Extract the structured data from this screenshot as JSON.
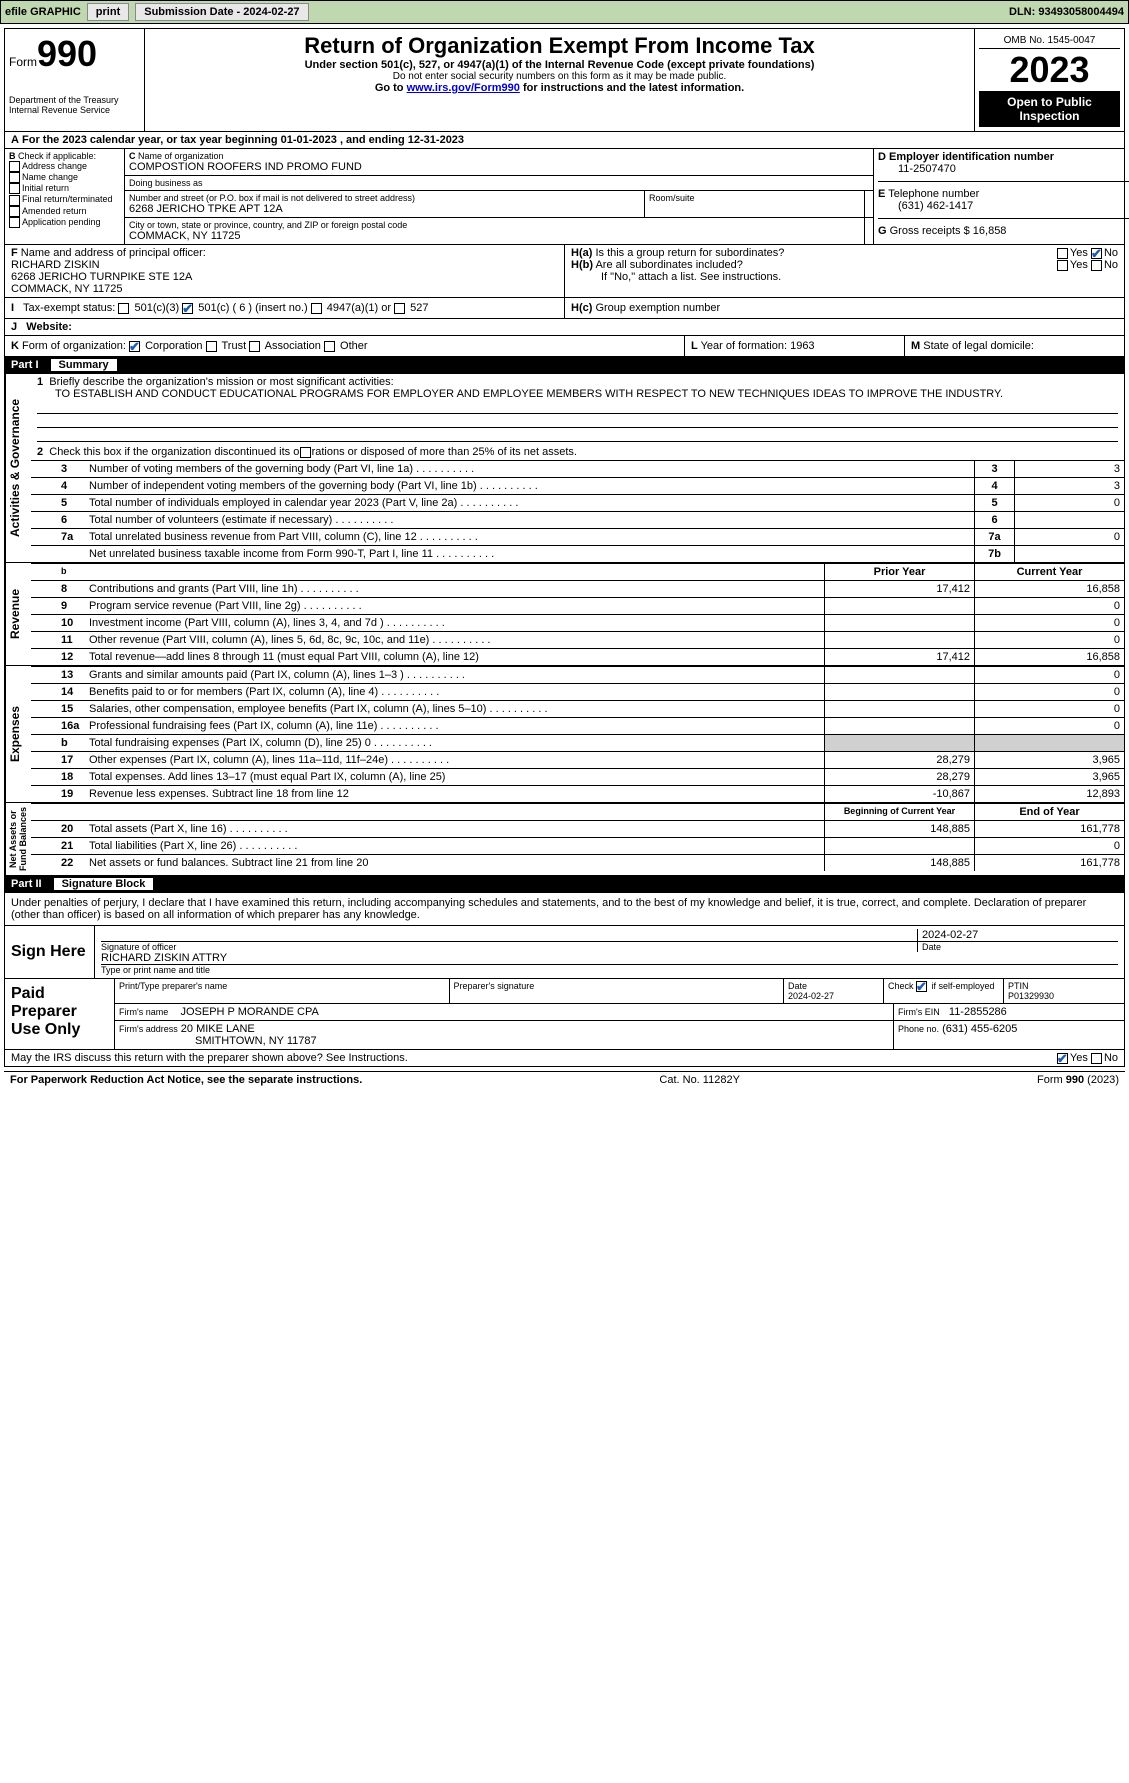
{
  "topbar": {
    "efile": "efile GRAPHIC",
    "print": "print",
    "subdate_label": "Submission Date - ",
    "subdate": "2024-02-27",
    "dln_label": "DLN: ",
    "dln": "93493058004494"
  },
  "header": {
    "form": "Form",
    "formnum": "990",
    "dept": "Department of the Treasury",
    "irs": "Internal Revenue Service",
    "title": "Return of Organization Exempt From Income Tax",
    "sub": "Under section 501(c), 527, or 4947(a)(1) of the Internal Revenue Code (except private foundations)",
    "note": "Do not enter social security numbers on this form as it may be made public.",
    "goto_pre": "Go to ",
    "goto_link": "www.irs.gov/Form990",
    "goto_post": " for instructions and the latest information.",
    "omb": "OMB No. 1545-0047",
    "year": "2023",
    "open": "Open to Public Inspection"
  },
  "lineA": "For the 2023 calendar year, or tax year beginning 01-01-2023    , and ending 12-31-2023",
  "boxB": {
    "label": "Check if applicable:",
    "items": [
      "Address change",
      "Name change",
      "Initial return",
      "Final return/terminated",
      "Amended return",
      "Application pending"
    ]
  },
  "boxC": {
    "name_label": "Name of organization",
    "name": "COMPOSTION ROOFERS IND PROMO FUND",
    "dba_label": "Doing business as",
    "dba": "",
    "street_label": "Number and street (or P.O. box if mail is not delivered to street address)",
    "room_label": "Room/suite",
    "street": "6268 JERICHO TPKE APT 12A",
    "city_label": "City or town, state or province, country, and ZIP or foreign postal code",
    "city": "COMMACK, NY  11725"
  },
  "boxD": {
    "label": "Employer identification number",
    "val": "11-2507470"
  },
  "boxE": {
    "label": "Telephone number",
    "val": "(631) 462-1417"
  },
  "boxG": {
    "label": "Gross receipts $",
    "val": "16,858"
  },
  "boxF": {
    "label": "Name and address of principal officer:",
    "name": "RICHARD ZISKIN",
    "addr1": "6268 JERICHO TURNPIKE STE 12A",
    "addr2": "COMMACK, NY  11725"
  },
  "boxH": {
    "a": "Is this a group return for subordinates?",
    "b": "Are all subordinates included?",
    "note": "If \"No,\" attach a list. See instructions.",
    "c": "Group exemption number"
  },
  "boxI": {
    "label": "Tax-exempt status:",
    "opts": [
      "501(c)(3)",
      "501(c) ( 6 ) (insert no.)",
      "4947(a)(1) or",
      "527"
    ]
  },
  "boxJ": {
    "label": "Website:",
    "val": ""
  },
  "boxK": {
    "label": "Form of organization:",
    "opts": [
      "Corporation",
      "Trust",
      "Association",
      "Other"
    ]
  },
  "boxL": {
    "label": "Year of formation:",
    "val": "1963"
  },
  "boxM": {
    "label": "State of legal domicile:",
    "val": ""
  },
  "part1": {
    "part": "Part I",
    "title": "Summary"
  },
  "mission_label": "Briefly describe the organization's mission or most significant activities:",
  "mission": "TO ESTABLISH AND CONDUCT EDUCATIONAL PROGRAMS FOR EMPLOYER AND EMPLOYEE MEMBERS WITH RESPECT TO NEW TECHNIQUES IDEAS TO IMPROVE THE INDUSTRY.",
  "line2": "Check this box      if the organization discontinued its operations or disposed of more than 25% of its net assets.",
  "gov_lines": [
    {
      "n": "3",
      "t": "Number of voting members of the governing body (Part VI, line 1a)",
      "bn": "3",
      "bv": "3"
    },
    {
      "n": "4",
      "t": "Number of independent voting members of the governing body (Part VI, line 1b)",
      "bn": "4",
      "bv": "3"
    },
    {
      "n": "5",
      "t": "Total number of individuals employed in calendar year 2023 (Part V, line 2a)",
      "bn": "5",
      "bv": "0"
    },
    {
      "n": "6",
      "t": "Total number of volunteers (estimate if necessary)",
      "bn": "6",
      "bv": ""
    },
    {
      "n": "7a",
      "t": "Total unrelated business revenue from Part VIII, column (C), line 12",
      "bn": "7a",
      "bv": "0"
    },
    {
      "n": "",
      "t": "Net unrelated business taxable income from Form 990-T, Part I, line 11",
      "bn": "7b",
      "bv": ""
    }
  ],
  "pycy": {
    "prior": "Prior Year",
    "current": "Current Year"
  },
  "rev_lines": [
    {
      "n": "8",
      "t": "Contributions and grants (Part VIII, line 1h)",
      "p": "17,412",
      "c": "16,858"
    },
    {
      "n": "9",
      "t": "Program service revenue (Part VIII, line 2g)",
      "p": "",
      "c": "0"
    },
    {
      "n": "10",
      "t": "Investment income (Part VIII, column (A), lines 3, 4, and 7d )",
      "p": "",
      "c": "0"
    },
    {
      "n": "11",
      "t": "Other revenue (Part VIII, column (A), lines 5, 6d, 8c, 9c, 10c, and 11e)",
      "p": "",
      "c": "0"
    },
    {
      "n": "12",
      "t": "Total revenue—add lines 8 through 11 (must equal Part VIII, column (A), line 12)",
      "p": "17,412",
      "c": "16,858"
    }
  ],
  "exp_lines": [
    {
      "n": "13",
      "t": "Grants and similar amounts paid (Part IX, column (A), lines 1–3 )",
      "p": "",
      "c": "0"
    },
    {
      "n": "14",
      "t": "Benefits paid to or for members (Part IX, column (A), line 4)",
      "p": "",
      "c": "0"
    },
    {
      "n": "15",
      "t": "Salaries, other compensation, employee benefits (Part IX, column (A), lines 5–10)",
      "p": "",
      "c": "0"
    },
    {
      "n": "16a",
      "t": "Professional fundraising fees (Part IX, column (A), line 11e)",
      "p": "",
      "c": "0"
    },
    {
      "n": "b",
      "t": "Total fundraising expenses (Part IX, column (D), line 25) 0",
      "p": "SHADE",
      "c": "SHADE"
    },
    {
      "n": "17",
      "t": "Other expenses (Part IX, column (A), lines 11a–11d, 11f–24e)",
      "p": "28,279",
      "c": "3,965"
    },
    {
      "n": "18",
      "t": "Total expenses. Add lines 13–17 (must equal Part IX, column (A), line 25)",
      "p": "28,279",
      "c": "3,965"
    },
    {
      "n": "19",
      "t": "Revenue less expenses. Subtract line 18 from line 12",
      "p": "-10,867",
      "c": "12,893"
    }
  ],
  "na_hdr": {
    "begin": "Beginning of Current Year",
    "end": "End of Year"
  },
  "na_lines": [
    {
      "n": "20",
      "t": "Total assets (Part X, line 16)",
      "p": "148,885",
      "c": "161,778"
    },
    {
      "n": "21",
      "t": "Total liabilities (Part X, line 26)",
      "p": "",
      "c": "0"
    },
    {
      "n": "22",
      "t": "Net assets or fund balances. Subtract line 21 from line 20",
      "p": "148,885",
      "c": "161,778"
    }
  ],
  "vtabs": {
    "gov": "Activities & Governance",
    "rev": "Revenue",
    "exp": "Expenses",
    "na": "Net Assets or\nFund Balances"
  },
  "part2": {
    "part": "Part II",
    "title": "Signature Block"
  },
  "perjury": "Under penalties of perjury, I declare that I have examined this return, including accompanying schedules and statements, and to the best of my knowledge and belief, it is true, correct, and complete. Declaration of preparer (other than officer) is based on all information of which preparer has any knowledge.",
  "sign": {
    "here": "Sign Here",
    "sig_label": "Signature of officer",
    "date_label": "Date",
    "date": "2024-02-27",
    "officer": "RICHARD ZISKIN  ATTRY",
    "type_label": "Type or print name and title"
  },
  "paid": {
    "label": "Paid Preparer Use Only",
    "name_label": "Print/Type preparer's name",
    "sig_label": "Preparer's signature",
    "date_label": "Date",
    "date": "2024-02-27",
    "check_label": "Check        if self-employed",
    "ptin_label": "PTIN",
    "ptin": "P01329930",
    "firm_name_label": "Firm's name",
    "firm_name": "JOSEPH P MORANDE CPA",
    "firm_ein_label": "Firm's EIN",
    "firm_ein": "11-2855286",
    "firm_addr_label": "Firm's address",
    "firm_addr1": "20 MIKE LANE",
    "firm_addr2": "SMITHTOWN, NY  11787",
    "phone_label": "Phone no.",
    "phone": "(631) 455-6205"
  },
  "discuss": "May the IRS discuss this return with the preparer shown above? See Instructions.",
  "footer": {
    "pra": "For Paperwork Reduction Act Notice, see the separate instructions.",
    "cat": "Cat. No. 11282Y",
    "form": "Form 990 (2023)"
  }
}
